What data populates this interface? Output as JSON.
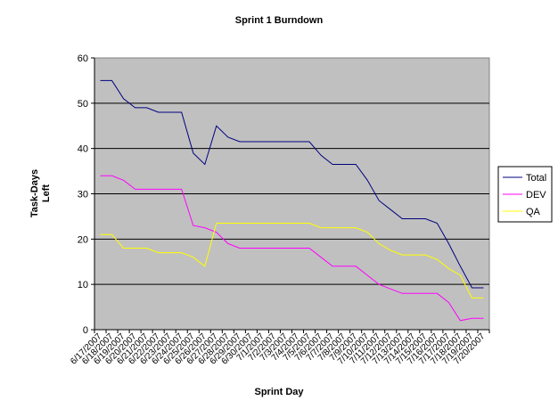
{
  "chart_data": {
    "type": "line",
    "title": "Sprint 1 Burndown",
    "xlabel": "Sprint Day",
    "ylabel_lines": [
      "Task-Days",
      "Left"
    ],
    "ylim": [
      0,
      60
    ],
    "yticks": [
      0,
      10,
      20,
      30,
      40,
      50,
      60
    ],
    "grid": true,
    "legend_position": "right",
    "x": [
      "6/17/2007",
      "6/18/2007",
      "6/19/2007",
      "6/20/2007",
      "6/21/2007",
      "6/22/2007",
      "6/23/2007",
      "6/24/2007",
      "6/25/2007",
      "6/26/2007",
      "6/27/2007",
      "6/28/2007",
      "6/29/2007",
      "6/30/2007",
      "7/1/2007",
      "7/2/2007",
      "7/3/2007",
      "7/4/2007",
      "7/5/2007",
      "7/6/2007",
      "7/7/2007",
      "7/8/2007",
      "7/9/2007",
      "7/10/2007",
      "7/11/2007",
      "7/12/2007",
      "7/13/2007",
      "7/14/2007",
      "7/15/2007",
      "7/16/2007",
      "7/17/2007",
      "7/18/2007",
      "7/19/2007",
      "7/20/2007"
    ],
    "series": [
      {
        "name": "Total",
        "color": "#000080",
        "values": [
          55,
          55,
          51,
          49,
          49,
          48,
          48,
          48,
          39,
          36.5,
          45,
          42.5,
          41.5,
          41.5,
          41.5,
          41.5,
          41.5,
          41.5,
          41.5,
          38.5,
          36.5,
          36.5,
          36.5,
          33,
          28.5,
          26.5,
          24.5,
          24.5,
          24.5,
          23.5,
          19,
          14,
          9.25,
          9.25
        ]
      },
      {
        "name": "DEV",
        "color": "#ff00ff",
        "values": [
          34,
          34,
          33,
          31,
          31,
          31,
          31,
          31,
          23,
          22.5,
          21.5,
          19,
          18,
          18,
          18,
          18,
          18,
          18,
          18,
          16,
          14,
          14,
          14,
          12,
          10,
          9,
          8,
          8,
          8,
          8,
          6,
          2,
          2.5,
          2.5
        ]
      },
      {
        "name": "QA",
        "color": "#ffff00",
        "values": [
          21,
          21,
          18,
          18,
          18,
          17,
          17,
          17,
          16,
          14,
          23.5,
          23.5,
          23.5,
          23.5,
          23.5,
          23.5,
          23.5,
          23.5,
          23.5,
          22.5,
          22.5,
          22.5,
          22.5,
          21.5,
          19,
          17.5,
          16.5,
          16.5,
          16.5,
          15.5,
          13.5,
          12,
          7,
          7
        ]
      }
    ]
  }
}
